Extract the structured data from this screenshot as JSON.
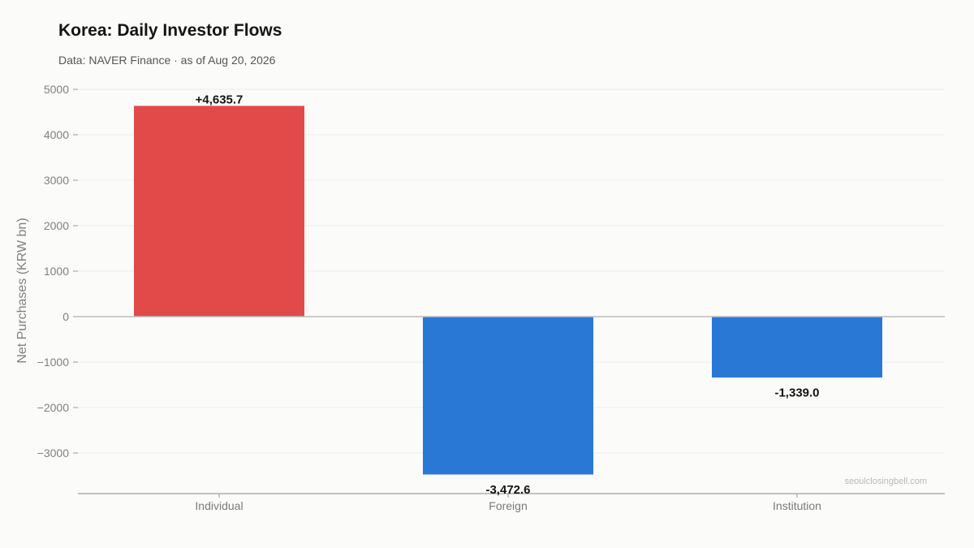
{
  "chart_data": {
    "type": "bar",
    "title": "Korea: Daily Investor Flows",
    "subtitle": "Data: NAVER Finance · as of Aug 20, 2026",
    "ylabel": "Net Purchases (KRW bn)",
    "xlabel": "",
    "categories": [
      "Individual",
      "Foreign",
      "Institution"
    ],
    "values": [
      4635.7,
      -3472.6,
      -1339.0
    ],
    "data_labels": [
      "+4,635.7",
      "-3,472.6",
      "-1,339.0"
    ],
    "bar_colors": [
      "#e24a4a",
      "#2a78d6",
      "#2a78d6"
    ],
    "ylim": [
      -3900,
      5000
    ],
    "yticks": [
      5000,
      4000,
      3000,
      2000,
      1000,
      0,
      -1000,
      -2000,
      -3000
    ],
    "ytick_labels": [
      "5000",
      "4000",
      "3000",
      "2000",
      "1000",
      "0",
      "−1000",
      "−2000",
      "−3000"
    ],
    "grid": true,
    "legend": "none",
    "watermark": "seoulclosingbell.com"
  }
}
